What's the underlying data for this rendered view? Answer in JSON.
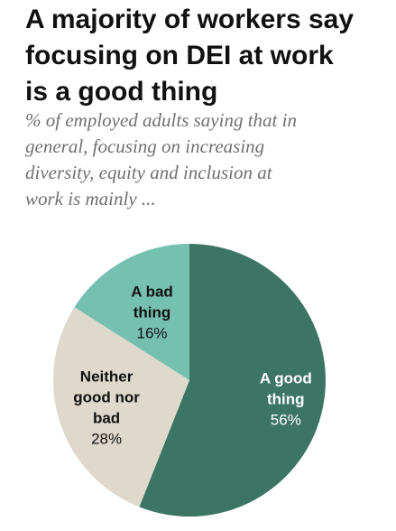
{
  "chart_data": {
    "type": "pie",
    "title": "A majority of workers say focusing on DEI at work is a good thing",
    "title_lines": [
      "A majority of workers say",
      "focusing on DEI at work",
      "is a good thing"
    ],
    "subtitle": "% of employed adults saying that in general, focusing on increasing diversity, equity and inclusion at work is mainly ...",
    "subtitle_lines": [
      "% of employed adults saying that in",
      "general, focusing on increasing",
      "diversity, equity and inclusion at",
      "work is mainly ..."
    ],
    "slices": [
      {
        "label": "A good thing",
        "label_lines": [
          "A good",
          "thing"
        ],
        "value": 56,
        "value_label": "56%",
        "color": "#3d7565",
        "text_color": "#ffffff"
      },
      {
        "label": "Neither good nor bad",
        "label_lines": [
          "Neither",
          "good nor",
          "bad"
        ],
        "value": 28,
        "value_label": "28%",
        "color": "#ded9cc",
        "text_color": "#111111"
      },
      {
        "label": "A bad thing",
        "label_lines": [
          "A bad",
          "thing"
        ],
        "value": 16,
        "value_label": "16%",
        "color": "#75c0af",
        "text_color": "#111111"
      }
    ]
  }
}
